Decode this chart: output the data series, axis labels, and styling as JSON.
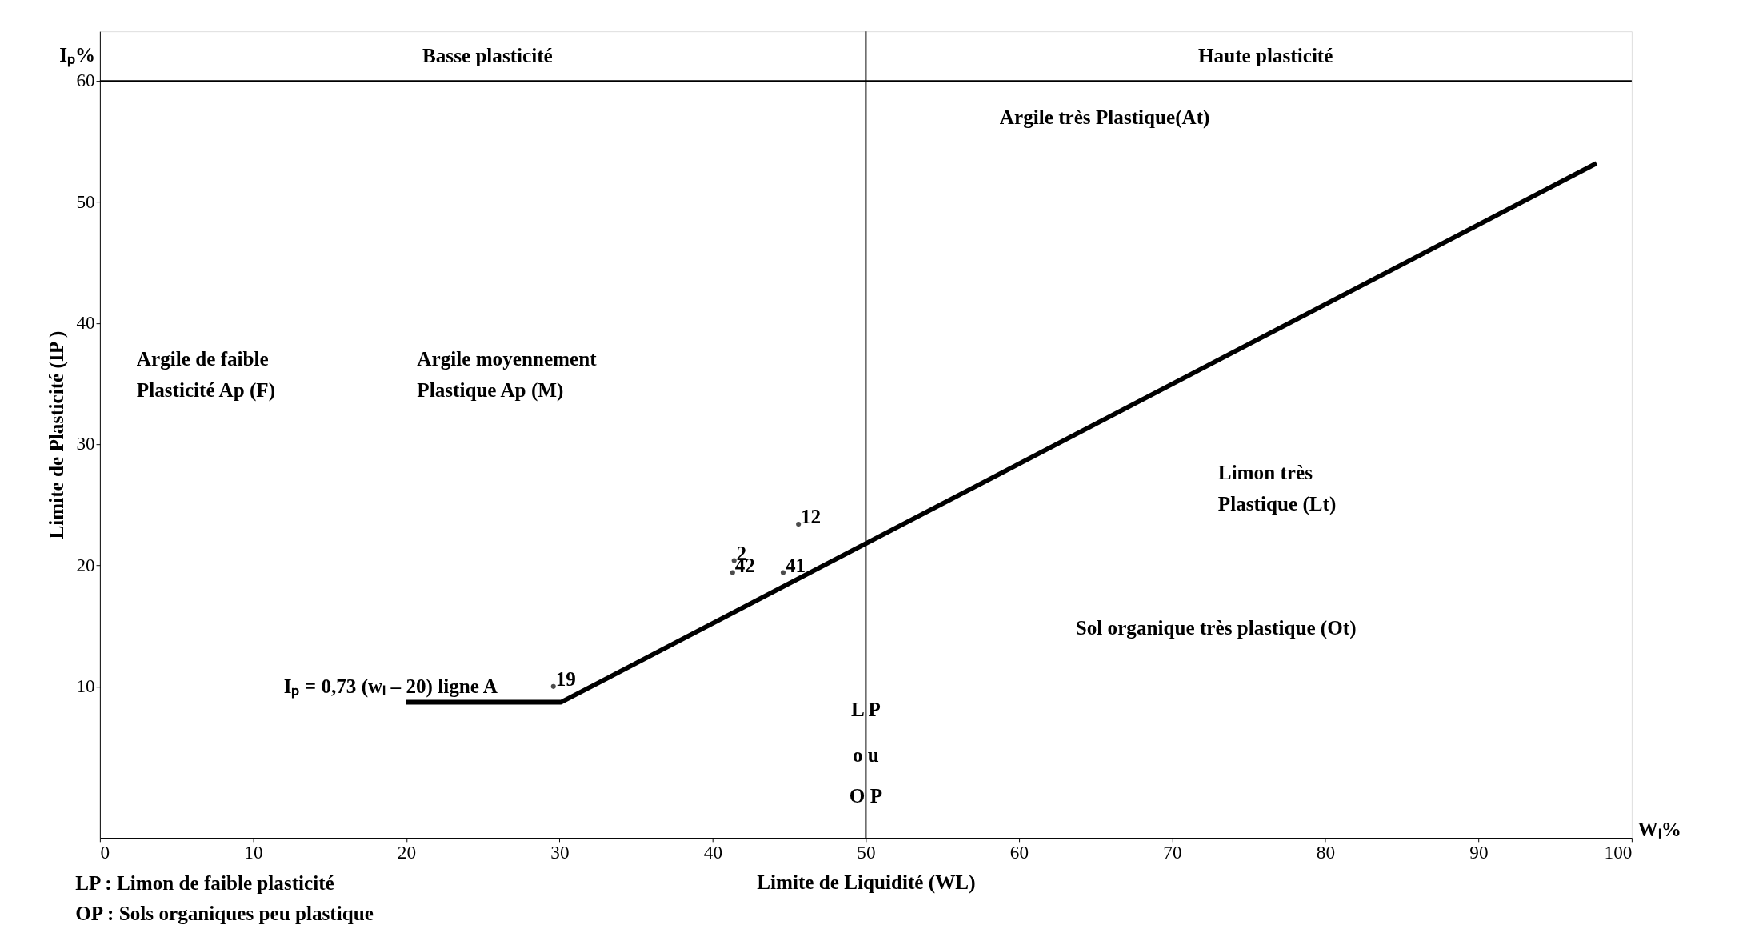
{
  "chart_data": {
    "type": "line",
    "xlabel": "Limite de Liquidité (WL)",
    "ylabel": "Limite de Plasticité (IP )",
    "xlim": [
      0,
      100
    ],
    "ylim": [
      -2.5,
      64.1
    ],
    "xticks": [
      0,
      10,
      20,
      30,
      40,
      50,
      60,
      70,
      80,
      90,
      100
    ],
    "yticks": [
      10,
      20,
      30,
      40,
      50,
      60
    ],
    "grid": false,
    "series": [
      {
        "color": "#000000",
        "x": [
          20,
          30.1,
          97.7
        ],
        "values": [
          8.7,
          8.7,
          53.2
        ]
      },
      {
        "type": "scatter",
        "color": "#000000",
        "marker": "circle",
        "x": [
          45.6,
          41.4,
          41.3,
          44.6,
          29.6
        ],
        "values": [
          23.4,
          20.4,
          19.4,
          19.4,
          10.0
        ]
      }
    ],
    "ref_lines": [
      {
        "axis": "x",
        "value": 50,
        "label": null,
        "color": "#000000"
      },
      {
        "axis": "y",
        "value": 60,
        "label": null,
        "color": "#000000"
      }
    ],
    "annotations": [
      "Basse plasticité",
      "Haute plasticité",
      "Argile très Plastique(At)",
      "Argile de faible\nPlasticité Ap (F)",
      "Argile moyennement\nPlastique Ap (M)",
      "Limon très\nPlastique (Lt)",
      "Sol organique très plastique (Ot)",
      "Iₚ = 0,73 (wₗ – 20) ligne A",
      "L P",
      "o u",
      "O P",
      "Iₚ%",
      "Wₗ%",
      "LP : Limon de faible plasticité",
      "OP : Sols organiques peu plastique",
      {
        "text": "12",
        "x": 45.6,
        "y": 23.4
      },
      {
        "text": "2",
        "x": 41.4,
        "y": 20.4
      },
      {
        "text": "42",
        "x": 41.3,
        "y": 19.4
      },
      {
        "text": "41",
        "x": 44.6,
        "y": 19.4
      },
      {
        "text": "19",
        "x": 29.6,
        "y": 10.0
      }
    ]
  }
}
